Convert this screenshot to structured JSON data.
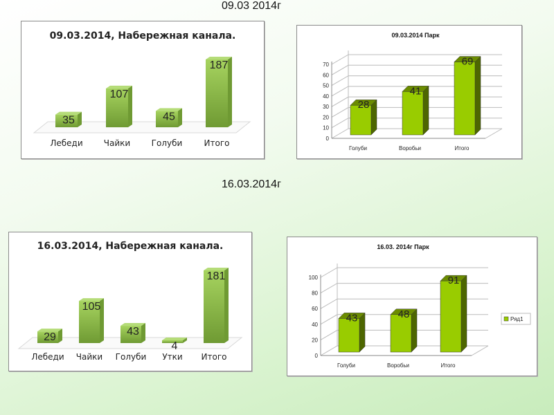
{
  "headings": {
    "first": "09.03 2014г",
    "second": "16.03.2014г"
  },
  "colors": {
    "canal_bar": "#8cbf4a",
    "canal_bar_dark": "#6f9a33",
    "park_bar": "#99cc00",
    "park_bar_side": "#4d6600"
  },
  "chart_data": [
    {
      "type": "bar",
      "style": "canal-3d",
      "title": "09.03.2014, Набережная канала.",
      "categories": [
        "Лебеди",
        "Чайки",
        "Голуби",
        "Итого"
      ],
      "values": [
        35,
        107,
        45,
        187
      ],
      "xlabel": "",
      "ylabel": "",
      "grid": false
    },
    {
      "type": "bar",
      "style": "park-3d",
      "title": "09.03.2014 Парк",
      "categories": [
        "Голуби",
        "Воробьи",
        "Итого"
      ],
      "values": [
        28,
        41,
        69
      ],
      "ylim": [
        0,
        70
      ],
      "yticks": [
        0,
        10,
        20,
        30,
        40,
        50,
        60,
        70
      ],
      "grid": true,
      "xlabel": "",
      "ylabel": ""
    },
    {
      "type": "bar",
      "style": "canal-3d",
      "title": "16.03.2014, Набережная канала.",
      "categories": [
        "Лебеди",
        "Чайки",
        "Голуби",
        "Утки",
        "Итого"
      ],
      "values": [
        29,
        105,
        43,
        4,
        181
      ],
      "xlabel": "",
      "ylabel": "",
      "grid": false
    },
    {
      "type": "bar",
      "style": "park-3d",
      "title": "16.03. 2014г Парк",
      "categories": [
        "Голуби",
        "Воробьи",
        "Итого"
      ],
      "values": [
        43,
        48,
        91
      ],
      "ylim": [
        0,
        100
      ],
      "yticks": [
        0,
        20,
        40,
        60,
        80,
        100
      ],
      "grid": true,
      "legend": {
        "entries": [
          "Ряд1"
        ],
        "placement": "right"
      },
      "xlabel": "",
      "ylabel": ""
    }
  ]
}
